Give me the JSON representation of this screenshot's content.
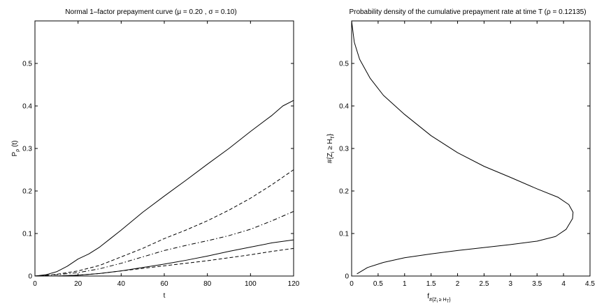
{
  "chart_data": [
    {
      "type": "line",
      "title": "Normal 1–factor prepayment curve (μ = 0.20 , σ = 0.10)",
      "xlabel": "t",
      "ylabel_main": "P",
      "ylabel_sub": "ρ",
      "ylabel_tail": "(t)",
      "xlim": [
        0,
        120
      ],
      "ylim": [
        0,
        0.6
      ],
      "xticks": [
        0,
        20,
        40,
        60,
        80,
        100,
        120
      ],
      "xtick_labels": [
        "0",
        "20",
        "40",
        "60",
        "80",
        "100",
        "120"
      ],
      "yticks": [
        0,
        0.1,
        0.2,
        0.3,
        0.4,
        0.5
      ],
      "ytick_labels": [
        "0",
        "0.1",
        "0.2",
        "0.3",
        "0.4",
        "0.5"
      ],
      "grid": false,
      "series": [
        {
          "style": "solid",
          "x": [
            0,
            5,
            10,
            15,
            20,
            25,
            30,
            35,
            40,
            50,
            60,
            70,
            80,
            90,
            100,
            110,
            115,
            120
          ],
          "y": [
            0,
            0.003,
            0.01,
            0.023,
            0.04,
            0.052,
            0.068,
            0.088,
            0.108,
            0.15,
            0.188,
            0.225,
            0.263,
            0.3,
            0.34,
            0.378,
            0.4,
            0.413
          ]
        },
        {
          "style": "dashed",
          "x": [
            0,
            10,
            20,
            30,
            40,
            50,
            60,
            70,
            80,
            90,
            100,
            110,
            120
          ],
          "y": [
            0,
            0.004,
            0.012,
            0.025,
            0.045,
            0.065,
            0.088,
            0.108,
            0.13,
            0.155,
            0.183,
            0.215,
            0.25
          ]
        },
        {
          "style": "dashdot",
          "x": [
            0,
            10,
            20,
            30,
            40,
            50,
            60,
            70,
            80,
            90,
            100,
            110,
            120
          ],
          "y": [
            0,
            0.003,
            0.008,
            0.017,
            0.03,
            0.045,
            0.06,
            0.072,
            0.083,
            0.095,
            0.11,
            0.13,
            0.152
          ]
        },
        {
          "style": "solid",
          "x": [
            0,
            10,
            20,
            30,
            40,
            50,
            60,
            70,
            80,
            90,
            100,
            110,
            120
          ],
          "y": [
            0,
            0.0,
            0.002,
            0.006,
            0.012,
            0.02,
            0.028,
            0.037,
            0.047,
            0.058,
            0.068,
            0.078,
            0.085
          ]
        },
        {
          "style": "dashed",
          "x": [
            0,
            10,
            20,
            30,
            40,
            50,
            60,
            70,
            80,
            90,
            100,
            110,
            120
          ],
          "y": [
            0,
            0.0,
            0.002,
            0.006,
            0.012,
            0.018,
            0.024,
            0.03,
            0.036,
            0.043,
            0.05,
            0.058,
            0.065
          ]
        }
      ]
    },
    {
      "type": "line",
      "title": "Probability density of the cumulative prepayment rate at time T (ρ = 0.12135)",
      "xlabel_main": "f",
      "xlabel_sub": "#{Z",
      "xlabel_sub2": "i",
      "xlabel_sub3": " ≥ H",
      "xlabel_sub4": "T",
      "xlabel_sub5": "}",
      "ylabel": "#{Z",
      "ylabel_i": "i",
      "ylabel_mid": " ≥ H",
      "ylabel_T": "T",
      "ylabel_end": "}",
      "xlim": [
        0,
        4.5
      ],
      "ylim": [
        0,
        0.6
      ],
      "xticks": [
        0,
        0.5,
        1,
        1.5,
        2,
        2.5,
        3,
        3.5,
        4,
        4.5
      ],
      "xtick_labels": [
        "0",
        "0.5",
        "1",
        "1.5",
        "2",
        "2.5",
        "3",
        "3.5",
        "4",
        "4.5"
      ],
      "yticks": [
        0,
        0.1,
        0.2,
        0.3,
        0.4,
        0.5
      ],
      "ytick_labels": [
        "0",
        "0.1",
        "0.2",
        "0.3",
        "0.4",
        "0.5"
      ],
      "grid": false,
      "series": [
        {
          "style": "solid",
          "x": [
            0.1,
            0.3,
            0.6,
            1.0,
            1.5,
            2.0,
            2.5,
            3.0,
            3.5,
            3.85,
            4.05,
            4.17,
            4.18,
            4.1,
            3.9,
            3.5,
            3.0,
            2.5,
            2.0,
            1.5,
            1.0,
            0.6,
            0.35,
            0.15,
            0.05,
            0.0
          ],
          "y": [
            0.005,
            0.02,
            0.032,
            0.043,
            0.052,
            0.06,
            0.067,
            0.074,
            0.082,
            0.093,
            0.11,
            0.135,
            0.15,
            0.168,
            0.185,
            0.205,
            0.232,
            0.258,
            0.29,
            0.33,
            0.38,
            0.425,
            0.465,
            0.51,
            0.55,
            0.6
          ]
        }
      ]
    }
  ]
}
